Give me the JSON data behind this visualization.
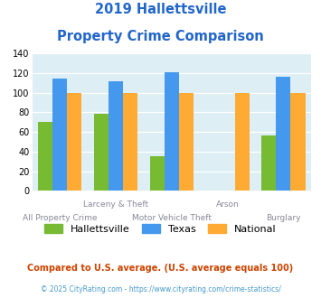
{
  "title_line1": "2019 Hallettsville",
  "title_line2": "Property Crime Comparison",
  "hallettsville": [
    70,
    79,
    35,
    0,
    56
  ],
  "texas": [
    115,
    112,
    121,
    0,
    116
  ],
  "national": [
    100,
    100,
    100,
    100,
    100
  ],
  "bar_color_hallettsville": "#77bb33",
  "bar_color_texas": "#4499ee",
  "bar_color_national": "#ffaa33",
  "bg_color": "#ddeef5",
  "ylim": [
    0,
    140
  ],
  "yticks": [
    0,
    20,
    40,
    60,
    80,
    100,
    120,
    140
  ],
  "legend_labels": [
    "Hallettsville",
    "Texas",
    "National"
  ],
  "x_top_labels": [
    [
      "",
      0
    ],
    [
      "Larceny & Theft",
      1
    ],
    [
      "",
      2
    ],
    [
      "Arson",
      3
    ],
    [
      "",
      4
    ]
  ],
  "x_bot_labels": [
    [
      "All Property Crime",
      0
    ],
    [
      "",
      1
    ],
    [
      "Motor Vehicle Theft",
      2
    ],
    [
      "",
      3
    ],
    [
      "Burglary",
      4
    ]
  ],
  "footnote1": "Compared to U.S. average. (U.S. average equals 100)",
  "footnote2": "© 2025 CityRating.com - https://www.cityrating.com/crime-statistics/",
  "title_color": "#2266cc",
  "x_top_label_color": "#888899",
  "x_bot_label_color": "#888899",
  "footnote1_color": "#cc4400",
  "footnote2_color": "#4499cc"
}
